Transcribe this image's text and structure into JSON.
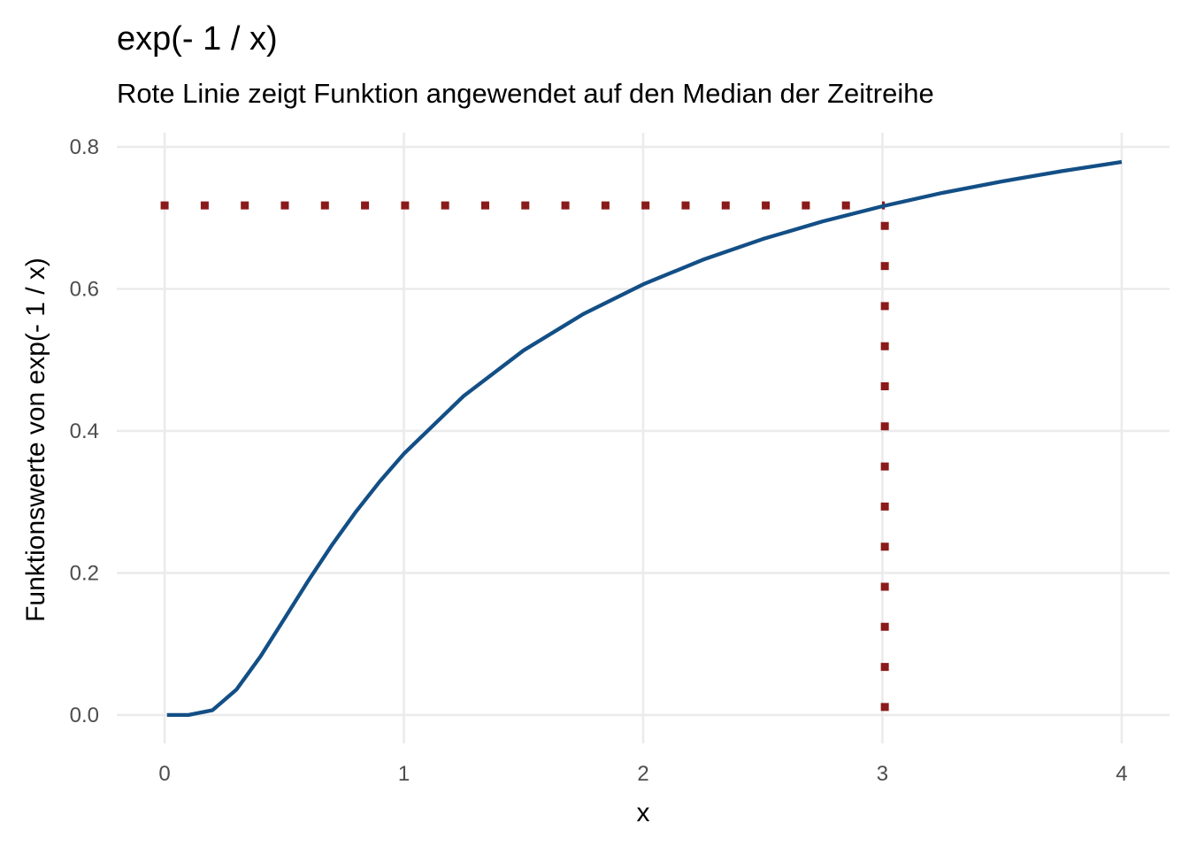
{
  "chart_data": {
    "type": "line",
    "title": "exp(- 1 / x)",
    "subtitle": "Rote Linie zeigt Funktion angewendet auf den Median der Zeitreihe",
    "xlabel": "x",
    "ylabel": "Funktionswerte von exp(- 1 / x)",
    "xlim": [
      -0.2,
      4.2
    ],
    "ylim": [
      -0.04,
      0.82
    ],
    "x_ticks": [
      0,
      1,
      2,
      3,
      4
    ],
    "x_tick_labels": [
      "0",
      "1",
      "2",
      "3",
      "4"
    ],
    "y_ticks": [
      0.0,
      0.2,
      0.4,
      0.6,
      0.8
    ],
    "y_tick_labels": [
      "0.0",
      "0.2",
      "0.4",
      "0.6",
      "0.8"
    ],
    "grid": true,
    "series": [
      {
        "function": "exp(-1/x)",
        "color": "#134f86",
        "x": [
          0.01,
          0.1,
          0.2,
          0.3,
          0.4,
          0.5,
          0.6,
          0.7,
          0.8,
          0.9,
          1.0,
          1.25,
          1.5,
          1.75,
          2.0,
          2.25,
          2.5,
          2.75,
          3.0,
          3.25,
          3.5,
          3.75,
          4.0
        ],
        "y": [
          0.0,
          5e-05,
          0.0067,
          0.0357,
          0.0821,
          0.1353,
          0.1889,
          0.2397,
          0.2865,
          0.3292,
          0.3679,
          0.4493,
          0.5134,
          0.5647,
          0.6065,
          0.6412,
          0.6703,
          0.6951,
          0.7165,
          0.7353,
          0.7515,
          0.7659,
          0.7788
        ]
      }
    ],
    "reference_lines": {
      "color": "#8b1a1a",
      "style": "dotted",
      "median_x": 3.01,
      "median_y": 0.7177
    }
  }
}
